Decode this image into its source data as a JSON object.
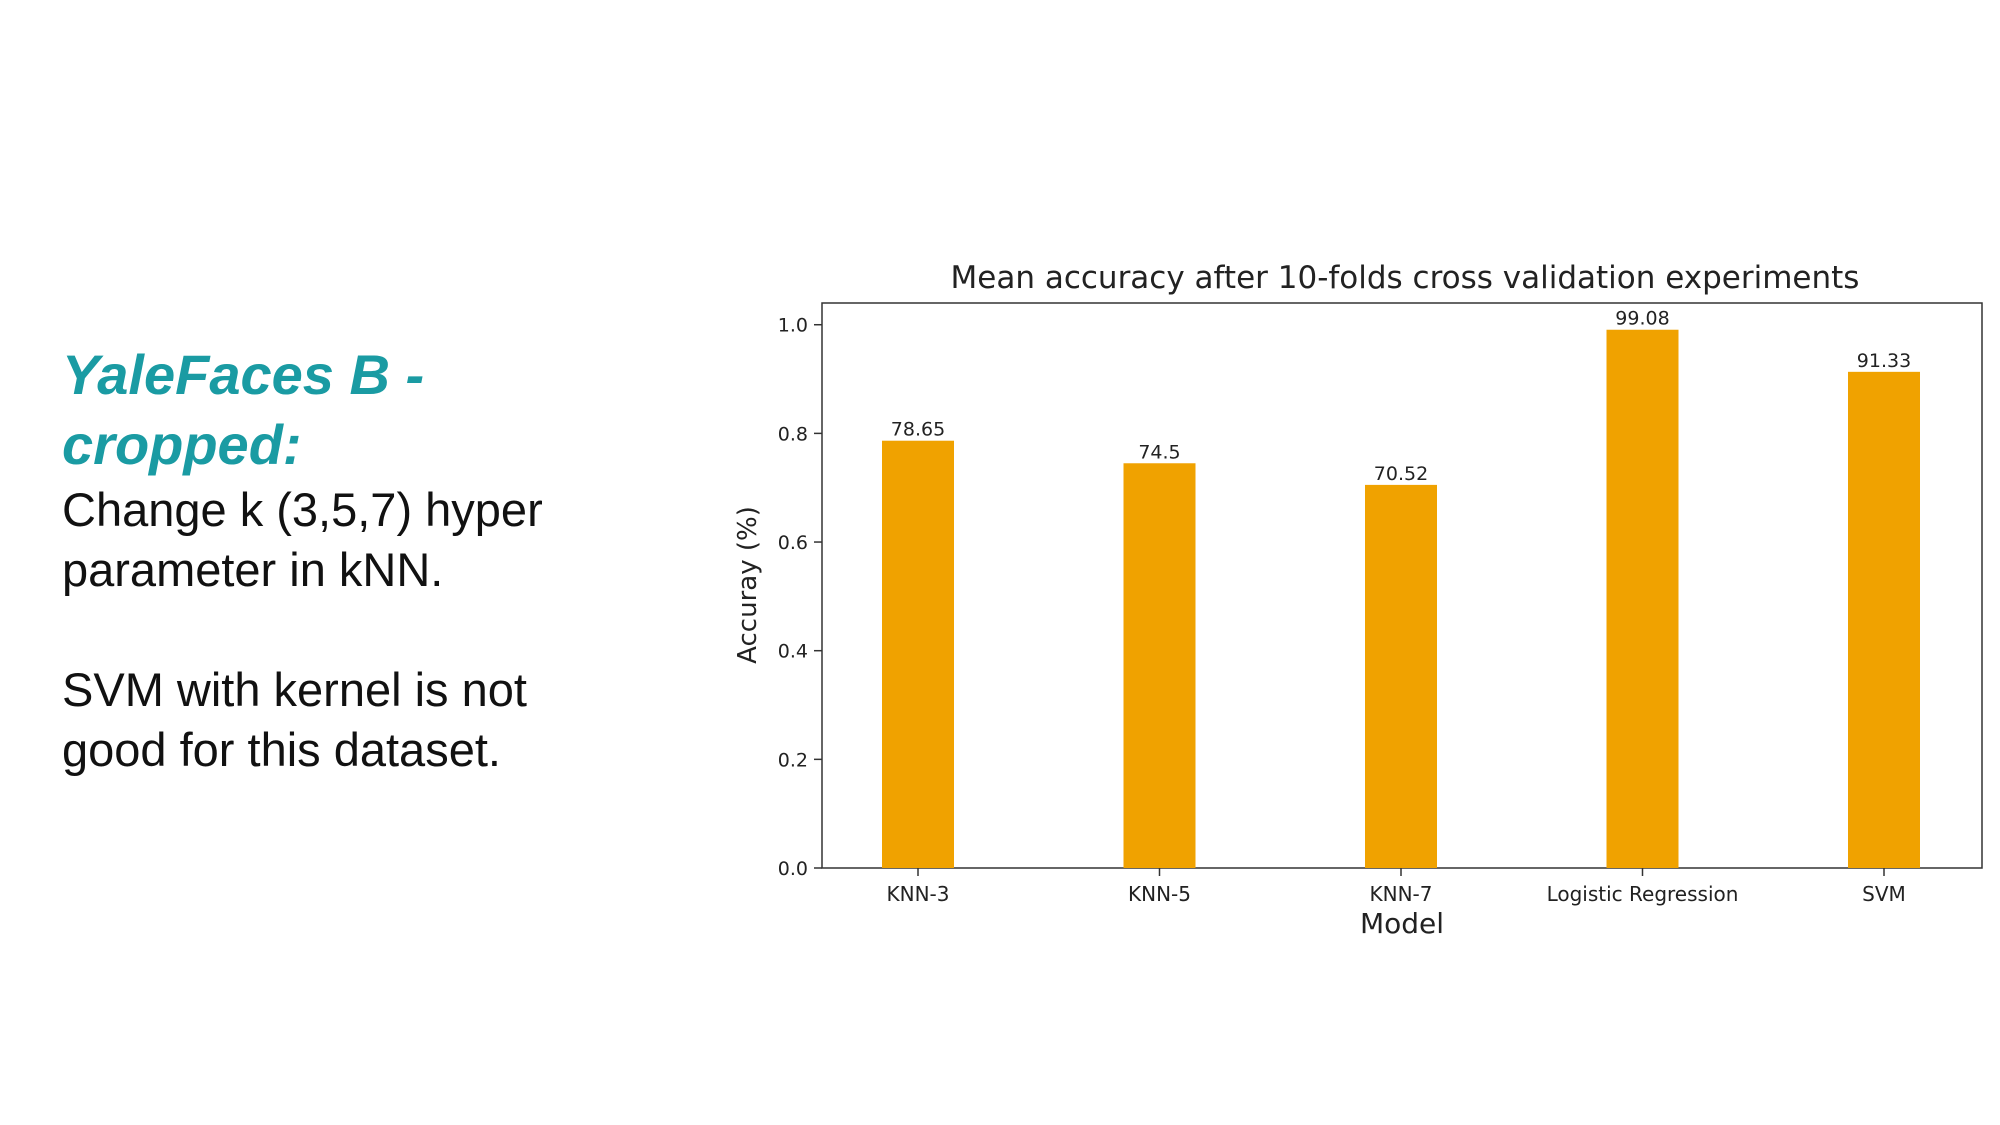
{
  "slide": {
    "heading_line1": "YaleFaces B -",
    "heading_line2": "cropped:",
    "body_line1": "Change k (3,5,7) hyper",
    "body_line2": "parameter in kNN.",
    "body_line3": "SVM with kernel is not",
    "body_line4": "good for this dataset."
  },
  "colors": {
    "heading": "#1a9ba3",
    "bar": "#f0a200"
  },
  "chart_data": {
    "type": "bar",
    "title": "Mean accuracy after 10-folds cross validation experiments",
    "xlabel": "Model",
    "ylabel": "Accuray (%)",
    "categories": [
      "KNN-3",
      "KNN-5",
      "KNN-7",
      "Logistic Regression",
      "SVM"
    ],
    "values": [
      0.7865,
      0.745,
      0.7052,
      0.9908,
      0.9133
    ],
    "data_labels": [
      "78.65",
      "74.5",
      "70.52",
      "99.08",
      "91.33"
    ],
    "ylim": [
      0,
      1.04
    ],
    "yticks": [
      0.0,
      0.2,
      0.4,
      0.6,
      0.8,
      1.0
    ],
    "ytick_labels": [
      "0.0",
      "0.2",
      "0.4",
      "0.6",
      "0.8",
      "1.0"
    ],
    "grid": false,
    "legend": "none"
  }
}
